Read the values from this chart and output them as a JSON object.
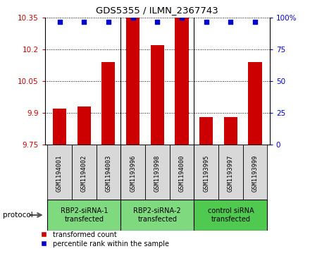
{
  "title": "GDS5355 / ILMN_2367743",
  "samples": [
    "GSM1194001",
    "GSM1194002",
    "GSM1194003",
    "GSM1193996",
    "GSM1193998",
    "GSM1194000",
    "GSM1193995",
    "GSM1193997",
    "GSM1193999"
  ],
  "transformed_counts": [
    9.92,
    9.93,
    10.14,
    10.35,
    10.22,
    10.35,
    9.88,
    9.88,
    10.14
  ],
  "percentile_ranks": [
    97,
    97,
    97,
    100,
    97,
    100,
    97,
    97,
    97
  ],
  "ylim_left": [
    9.75,
    10.35
  ],
  "ylim_right": [
    0,
    100
  ],
  "yticks_left": [
    9.75,
    9.9,
    10.05,
    10.2,
    10.35
  ],
  "ytick_labels_left": [
    "9.75",
    "9.9",
    "10.05",
    "10.2",
    "10.35"
  ],
  "yticks_right": [
    0,
    25,
    50,
    75,
    100
  ],
  "ytick_labels_right": [
    "0",
    "25",
    "50",
    "75",
    "100%"
  ],
  "groups": [
    {
      "label": "RBP2-siRNA-1\ntransfected",
      "start": 0,
      "end": 3,
      "color": "#7FD97F"
    },
    {
      "label": "RBP2-siRNA-2\ntransfected",
      "start": 3,
      "end": 6,
      "color": "#7FD97F"
    },
    {
      "label": "control siRNA\ntransfected",
      "start": 6,
      "end": 9,
      "color": "#4FC94F"
    }
  ],
  "bar_color": "#CC0000",
  "dot_color": "#0000CC",
  "bar_width": 0.55,
  "left_tick_color": "#CC0000",
  "right_tick_color": "#0000CC",
  "sample_box_color": "#D8D8D8",
  "legend_items": [
    {
      "color": "#CC0000",
      "label": "transformed count"
    },
    {
      "color": "#0000CC",
      "label": "percentile rank within the sample"
    }
  ]
}
